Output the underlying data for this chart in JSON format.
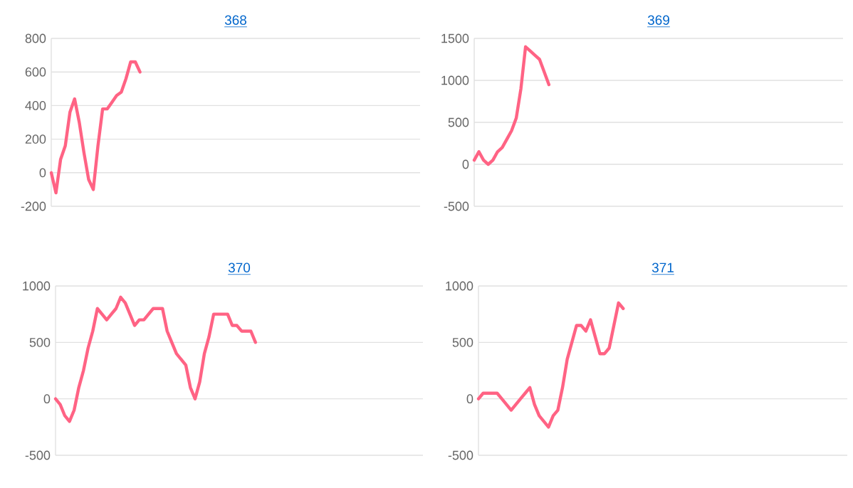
{
  "chart_data": [
    {
      "type": "line",
      "title": "368",
      "categories": [
        null,
        null,
        null,
        null,
        null,
        null,
        null,
        null,
        null,
        null,
        null,
        null,
        null,
        null,
        null,
        null,
        null,
        null,
        null,
        null,
        null,
        null,
        null,
        null,
        null,
        null,
        null,
        null,
        null,
        null,
        null,
        null,
        null,
        null,
        null,
        null,
        null,
        null,
        null,
        null,
        null,
        null,
        null,
        null,
        null,
        null,
        null,
        null,
        null,
        null,
        null,
        null,
        null,
        null,
        null,
        null,
        null,
        null,
        null,
        null,
        null,
        null,
        null,
        null,
        null,
        null,
        null,
        null,
        null,
        null,
        null,
        null,
        null,
        null,
        null,
        null,
        null,
        null,
        null,
        null
      ],
      "ylim": [
        -200,
        800
      ],
      "yticks": [
        -200,
        0,
        200,
        400,
        600,
        800
      ],
      "grid": "y",
      "tick_labels": "y",
      "series": [
        {
          "color": "#ff6384",
          "values": [
            0,
            -120,
            80,
            160,
            360,
            440,
            300,
            120,
            -40,
            -100,
            160,
            380,
            380,
            420,
            460,
            480,
            560,
            660,
            660,
            600,
            null,
            null,
            null,
            null,
            null,
            null,
            null,
            null,
            null,
            null,
            null,
            null,
            null,
            null,
            null,
            null,
            null,
            null,
            null,
            null,
            null,
            null,
            null,
            null,
            null,
            null,
            null,
            null,
            null,
            null,
            null,
            null,
            null,
            null,
            null,
            null,
            null,
            null,
            null,
            null,
            null,
            null,
            null,
            null,
            null,
            null,
            null,
            null,
            null,
            null,
            null,
            null,
            null,
            null,
            null,
            null,
            null,
            null,
            null,
            null
          ]
        }
      ]
    },
    {
      "type": "line",
      "title": "369",
      "categories": [
        null,
        null,
        null,
        null,
        null,
        null,
        null,
        null,
        null,
        null,
        null,
        null,
        null,
        null,
        null,
        null,
        null,
        null,
        null,
        null,
        null,
        null,
        null,
        null,
        null,
        null,
        null,
        null,
        null,
        null,
        null,
        null,
        null,
        null,
        null,
        null,
        null,
        null,
        null,
        null,
        null,
        null,
        null,
        null,
        null,
        null,
        null,
        null,
        null,
        null,
        null,
        null,
        null,
        null,
        null,
        null,
        null,
        null,
        null,
        null,
        null,
        null,
        null,
        null,
        null,
        null,
        null,
        null,
        null,
        null,
        null,
        null,
        null,
        null,
        null,
        null,
        null,
        null,
        null,
        null
      ],
      "ylim": [
        -500,
        1500
      ],
      "yticks": [
        -500,
        0,
        500,
        1000,
        1500
      ],
      "grid": "y",
      "tick_labels": "y",
      "series": [
        {
          "color": "#ff6384",
          "values": [
            50,
            150,
            50,
            0,
            50,
            150,
            200,
            300,
            400,
            550,
            900,
            1400,
            1350,
            1300,
            1250,
            1100,
            950,
            null,
            null,
            null,
            null,
            null,
            null,
            null,
            null,
            null,
            null,
            null,
            null,
            null,
            null,
            null,
            null,
            null,
            null,
            null,
            null,
            null,
            null,
            null,
            null,
            null,
            null,
            null,
            null,
            null,
            null,
            null,
            null,
            null,
            null,
            null,
            null,
            null,
            null,
            null,
            null,
            null,
            null,
            null,
            null,
            null,
            null,
            null,
            null,
            null,
            null,
            null,
            null,
            null,
            null,
            null,
            null,
            null,
            null,
            null,
            null,
            null,
            null,
            null
          ]
        }
      ]
    },
    {
      "type": "line",
      "title": "370",
      "categories": [
        null,
        null,
        null,
        null,
        null,
        null,
        null,
        null,
        null,
        null,
        null,
        null,
        null,
        null,
        null,
        null,
        null,
        null,
        null,
        null,
        null,
        null,
        null,
        null,
        null,
        null,
        null,
        null,
        null,
        null,
        null,
        null,
        null,
        null,
        null,
        null,
        null,
        null,
        null,
        null,
        null,
        null,
        null,
        null,
        null,
        null,
        null,
        null,
        null,
        null,
        null,
        null,
        null,
        null,
        null,
        null,
        null,
        null,
        null,
        null,
        null,
        null,
        null,
        null,
        null,
        null,
        null,
        null,
        null,
        null,
        null,
        null,
        null,
        null,
        null,
        null,
        null,
        null,
        null,
        null
      ],
      "ylim": [
        -500,
        1000
      ],
      "yticks": [
        -500,
        0,
        500,
        1000
      ],
      "grid": "y",
      "tick_labels": "y",
      "series": [
        {
          "color": "#ff6384",
          "values": [
            0,
            -50,
            -150,
            -200,
            -100,
            100,
            250,
            450,
            600,
            800,
            750,
            700,
            750,
            800,
            900,
            850,
            750,
            650,
            700,
            700,
            750,
            800,
            800,
            800,
            600,
            500,
            400,
            350,
            300,
            100,
            0,
            150,
            400,
            550,
            750,
            750,
            750,
            750,
            650,
            650,
            600,
            600,
            600,
            500,
            null,
            null,
            null,
            null,
            null,
            null,
            null,
            null,
            null,
            null,
            null,
            null,
            null,
            null,
            null,
            null,
            null,
            null,
            null,
            null,
            null,
            null,
            null,
            null,
            null,
            null,
            null,
            null,
            null,
            null,
            null,
            null,
            null,
            null,
            null,
            null
          ]
        }
      ]
    },
    {
      "type": "line",
      "title": "371",
      "categories": [
        null,
        null,
        null,
        null,
        null,
        null,
        null,
        null,
        null,
        null,
        null,
        null,
        null,
        null,
        null,
        null,
        null,
        null,
        null,
        null,
        null,
        null,
        null,
        null,
        null,
        null,
        null,
        null,
        null,
        null,
        null,
        null,
        null,
        null,
        null,
        null,
        null,
        null,
        null,
        null,
        null,
        null,
        null,
        null,
        null,
        null,
        null,
        null,
        null,
        null,
        null,
        null,
        null,
        null,
        null,
        null,
        null,
        null,
        null,
        null,
        null,
        null,
        null,
        null,
        null,
        null,
        null,
        null,
        null,
        null,
        null,
        null,
        null,
        null,
        null,
        null,
        null,
        null,
        null,
        null
      ],
      "ylim": [
        -500,
        1000
      ],
      "yticks": [
        -500,
        0,
        500,
        1000
      ],
      "grid": "y",
      "tick_labels": "y",
      "series": [
        {
          "color": "#ff6384",
          "values": [
            0,
            50,
            50,
            50,
            50,
            0,
            -50,
            -100,
            -50,
            0,
            50,
            100,
            -50,
            -150,
            -200,
            -250,
            -150,
            -100,
            100,
            350,
            500,
            650,
            650,
            600,
            700,
            550,
            400,
            400,
            450,
            650,
            850,
            800,
            null,
            null,
            null,
            null,
            null,
            null,
            null,
            null,
            null,
            null,
            null,
            null,
            null,
            null,
            null,
            null,
            null,
            null,
            null,
            null,
            null,
            null,
            null,
            null,
            null,
            null,
            null,
            null,
            null,
            null,
            null,
            null,
            null,
            null,
            null,
            null,
            null,
            null,
            null,
            null,
            null,
            null,
            null,
            null,
            null,
            null,
            null,
            null
          ]
        }
      ]
    }
  ]
}
